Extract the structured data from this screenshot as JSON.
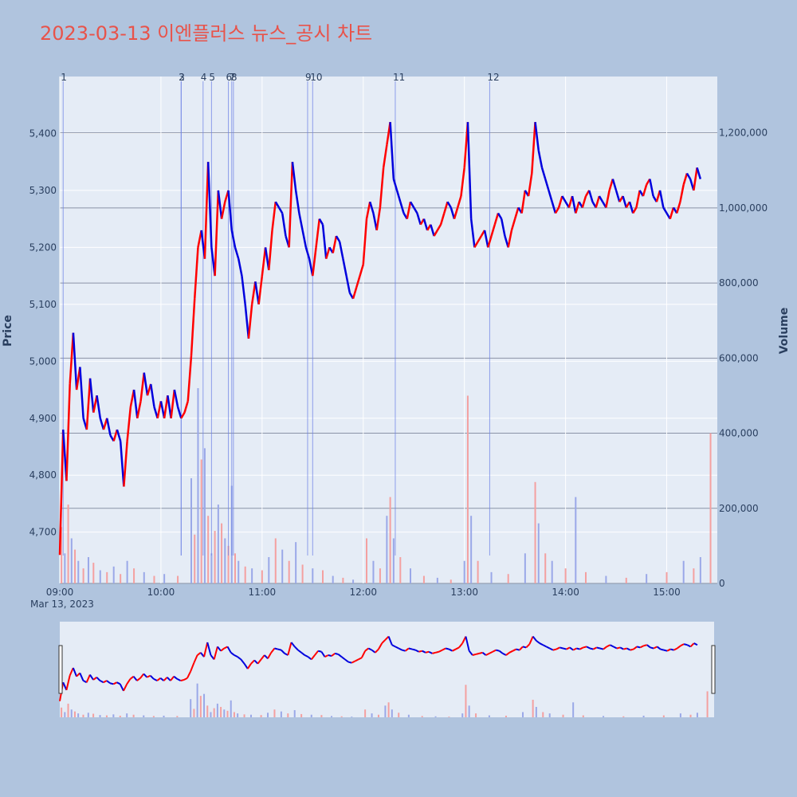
{
  "title": "2023-03-13 이엔플러스 뉴스_공시 차트",
  "colors": {
    "up": "#ff0000",
    "down": "#0000dd",
    "vol_up": "#f4a0a0",
    "vol_down": "#9aa8e8",
    "event_line": "#6f83e6",
    "title": "#e8534a"
  },
  "chart_data": {
    "type": "candlestick",
    "date_label": "Mar 13, 2023",
    "xlabel": "",
    "ylabel": "Price",
    "y2label": "Volume",
    "x_range": [
      "09:00",
      "15:30"
    ],
    "ylim": [
      4610,
      5500
    ],
    "y2lim": [
      0,
      1350000
    ],
    "x_ticks": [
      "09:00",
      "10:00",
      "11:00",
      "12:00",
      "13:00",
      "14:00",
      "15:00"
    ],
    "y_ticks": [
      4700,
      4800,
      4900,
      5000,
      5100,
      5200,
      5300,
      5400
    ],
    "y_tick_labels": [
      "4,700",
      "4,800",
      "4,900",
      "5,000",
      "5,100",
      "5,200",
      "5,300",
      "5,400"
    ],
    "y2_ticks": [
      0,
      200000,
      400000,
      600000,
      800000,
      1000000,
      1200000
    ],
    "y2_tick_labels": [
      "0",
      "200,000",
      "400,000",
      "600,000",
      "800,000",
      "1,000,000",
      "1,200,000"
    ],
    "price_path": [
      [
        "09:00",
        4660
      ],
      [
        "09:02",
        4880
      ],
      [
        "09:04",
        4790
      ],
      [
        "09:06",
        4960
      ],
      [
        "09:08",
        5050
      ],
      [
        "09:10",
        4950
      ],
      [
        "09:12",
        4990
      ],
      [
        "09:14",
        4900
      ],
      [
        "09:16",
        4880
      ],
      [
        "09:18",
        4970
      ],
      [
        "09:20",
        4910
      ],
      [
        "09:22",
        4940
      ],
      [
        "09:24",
        4900
      ],
      [
        "09:26",
        4880
      ],
      [
        "09:28",
        4900
      ],
      [
        "09:30",
        4870
      ],
      [
        "09:32",
        4860
      ],
      [
        "09:34",
        4880
      ],
      [
        "09:36",
        4860
      ],
      [
        "09:38",
        4780
      ],
      [
        "09:40",
        4860
      ],
      [
        "09:42",
        4920
      ],
      [
        "09:44",
        4950
      ],
      [
        "09:46",
        4900
      ],
      [
        "09:48",
        4930
      ],
      [
        "09:50",
        4980
      ],
      [
        "09:52",
        4940
      ],
      [
        "09:54",
        4960
      ],
      [
        "09:56",
        4920
      ],
      [
        "09:58",
        4900
      ],
      [
        "10:00",
        4930
      ],
      [
        "10:02",
        4900
      ],
      [
        "10:04",
        4940
      ],
      [
        "10:06",
        4900
      ],
      [
        "10:08",
        4950
      ],
      [
        "10:10",
        4920
      ],
      [
        "10:12",
        4900
      ],
      [
        "10:14",
        4910
      ],
      [
        "10:16",
        4930
      ],
      [
        "10:18",
        5010
      ],
      [
        "10:20",
        5110
      ],
      [
        "10:22",
        5200
      ],
      [
        "10:24",
        5230
      ],
      [
        "10:26",
        5180
      ],
      [
        "10:28",
        5350
      ],
      [
        "10:30",
        5200
      ],
      [
        "10:32",
        5150
      ],
      [
        "10:34",
        5300
      ],
      [
        "10:36",
        5250
      ],
      [
        "10:38",
        5280
      ],
      [
        "10:40",
        5300
      ],
      [
        "10:42",
        5230
      ],
      [
        "10:44",
        5200
      ],
      [
        "10:46",
        5180
      ],
      [
        "10:48",
        5150
      ],
      [
        "10:50",
        5100
      ],
      [
        "10:52",
        5040
      ],
      [
        "10:54",
        5100
      ],
      [
        "10:56",
        5140
      ],
      [
        "10:58",
        5100
      ],
      [
        "11:00",
        5150
      ],
      [
        "11:02",
        5200
      ],
      [
        "11:04",
        5160
      ],
      [
        "11:06",
        5230
      ],
      [
        "11:08",
        5280
      ],
      [
        "11:10",
        5270
      ],
      [
        "11:12",
        5260
      ],
      [
        "11:14",
        5220
      ],
      [
        "11:16",
        5200
      ],
      [
        "11:18",
        5350
      ],
      [
        "11:20",
        5300
      ],
      [
        "11:22",
        5260
      ],
      [
        "11:24",
        5230
      ],
      [
        "11:26",
        5200
      ],
      [
        "11:28",
        5180
      ],
      [
        "11:30",
        5150
      ],
      [
        "11:32",
        5200
      ],
      [
        "11:34",
        5250
      ],
      [
        "11:36",
        5240
      ],
      [
        "11:38",
        5180
      ],
      [
        "11:40",
        5200
      ],
      [
        "11:42",
        5190
      ],
      [
        "11:44",
        5220
      ],
      [
        "11:46",
        5210
      ],
      [
        "11:48",
        5180
      ],
      [
        "11:50",
        5150
      ],
      [
        "11:52",
        5120
      ],
      [
        "11:54",
        5110
      ],
      [
        "11:56",
        5130
      ],
      [
        "11:58",
        5150
      ],
      [
        "12:00",
        5170
      ],
      [
        "12:02",
        5250
      ],
      [
        "12:04",
        5280
      ],
      [
        "12:06",
        5260
      ],
      [
        "12:08",
        5230
      ],
      [
        "12:10",
        5270
      ],
      [
        "12:12",
        5340
      ],
      [
        "12:14",
        5380
      ],
      [
        "12:16",
        5420
      ],
      [
        "12:18",
        5320
      ],
      [
        "12:20",
        5300
      ],
      [
        "12:22",
        5280
      ],
      [
        "12:24",
        5260
      ],
      [
        "12:26",
        5250
      ],
      [
        "12:28",
        5280
      ],
      [
        "12:30",
        5270
      ],
      [
        "12:32",
        5260
      ],
      [
        "12:34",
        5240
      ],
      [
        "12:36",
        5250
      ],
      [
        "12:38",
        5230
      ],
      [
        "12:40",
        5240
      ],
      [
        "12:42",
        5220
      ],
      [
        "12:44",
        5230
      ],
      [
        "12:46",
        5240
      ],
      [
        "12:48",
        5260
      ],
      [
        "12:50",
        5280
      ],
      [
        "12:52",
        5270
      ],
      [
        "12:54",
        5250
      ],
      [
        "12:56",
        5270
      ],
      [
        "12:58",
        5290
      ],
      [
        "13:00",
        5340
      ],
      [
        "13:02",
        5420
      ],
      [
        "13:04",
        5250
      ],
      [
        "13:06",
        5200
      ],
      [
        "13:08",
        5210
      ],
      [
        "13:10",
        5220
      ],
      [
        "13:12",
        5230
      ],
      [
        "13:14",
        5200
      ],
      [
        "13:16",
        5220
      ],
      [
        "13:18",
        5240
      ],
      [
        "13:20",
        5260
      ],
      [
        "13:22",
        5250
      ],
      [
        "13:24",
        5220
      ],
      [
        "13:26",
        5200
      ],
      [
        "13:28",
        5230
      ],
      [
        "13:30",
        5250
      ],
      [
        "13:32",
        5270
      ],
      [
        "13:34",
        5260
      ],
      [
        "13:36",
        5300
      ],
      [
        "13:38",
        5290
      ],
      [
        "13:40",
        5330
      ],
      [
        "13:42",
        5420
      ],
      [
        "13:44",
        5370
      ],
      [
        "13:46",
        5340
      ],
      [
        "13:48",
        5320
      ],
      [
        "13:50",
        5300
      ],
      [
        "13:52",
        5280
      ],
      [
        "13:54",
        5260
      ],
      [
        "13:56",
        5270
      ],
      [
        "13:58",
        5290
      ],
      [
        "14:00",
        5280
      ],
      [
        "14:02",
        5270
      ],
      [
        "14:04",
        5290
      ],
      [
        "14:06",
        5260
      ],
      [
        "14:08",
        5280
      ],
      [
        "14:10",
        5270
      ],
      [
        "14:12",
        5290
      ],
      [
        "14:14",
        5300
      ],
      [
        "14:16",
        5280
      ],
      [
        "14:18",
        5270
      ],
      [
        "14:20",
        5290
      ],
      [
        "14:22",
        5280
      ],
      [
        "14:24",
        5270
      ],
      [
        "14:26",
        5300
      ],
      [
        "14:28",
        5320
      ],
      [
        "14:30",
        5300
      ],
      [
        "14:32",
        5280
      ],
      [
        "14:34",
        5290
      ],
      [
        "14:36",
        5270
      ],
      [
        "14:38",
        5280
      ],
      [
        "14:40",
        5260
      ],
      [
        "14:42",
        5270
      ],
      [
        "14:44",
        5300
      ],
      [
        "14:46",
        5290
      ],
      [
        "14:48",
        5310
      ],
      [
        "14:50",
        5320
      ],
      [
        "14:52",
        5290
      ],
      [
        "14:54",
        5280
      ],
      [
        "14:56",
        5300
      ],
      [
        "14:58",
        5270
      ],
      [
        "15:00",
        5260
      ],
      [
        "15:02",
        5250
      ],
      [
        "15:04",
        5270
      ],
      [
        "15:06",
        5260
      ],
      [
        "15:08",
        5280
      ],
      [
        "15:10",
        5310
      ],
      [
        "15:12",
        5330
      ],
      [
        "15:14",
        5320
      ],
      [
        "15:16",
        5300
      ],
      [
        "15:18",
        5340
      ],
      [
        "15:20",
        5320
      ]
    ],
    "volume_bars": [
      [
        "09:01",
        150000
      ],
      [
        "09:03",
        80000
      ],
      [
        "09:05",
        210000
      ],
      [
        "09:07",
        120000
      ],
      [
        "09:09",
        90000
      ],
      [
        "09:11",
        60000
      ],
      [
        "09:14",
        40000
      ],
      [
        "09:17",
        70000
      ],
      [
        "09:20",
        55000
      ],
      [
        "09:24",
        35000
      ],
      [
        "09:28",
        30000
      ],
      [
        "09:32",
        45000
      ],
      [
        "09:36",
        25000
      ],
      [
        "09:40",
        60000
      ],
      [
        "09:44",
        40000
      ],
      [
        "09:50",
        30000
      ],
      [
        "09:56",
        20000
      ],
      [
        "10:02",
        25000
      ],
      [
        "10:10",
        20000
      ],
      [
        "10:18",
        280000
      ],
      [
        "10:20",
        130000
      ],
      [
        "10:22",
        520000
      ],
      [
        "10:24",
        330000
      ],
      [
        "10:26",
        360000
      ],
      [
        "10:28",
        180000
      ],
      [
        "10:30",
        80000
      ],
      [
        "10:32",
        140000
      ],
      [
        "10:34",
        210000
      ],
      [
        "10:36",
        160000
      ],
      [
        "10:38",
        120000
      ],
      [
        "10:40",
        100000
      ],
      [
        "10:42",
        260000
      ],
      [
        "10:44",
        80000
      ],
      [
        "10:46",
        60000
      ],
      [
        "10:50",
        45000
      ],
      [
        "10:54",
        40000
      ],
      [
        "11:00",
        35000
      ],
      [
        "11:04",
        70000
      ],
      [
        "11:08",
        120000
      ],
      [
        "11:12",
        90000
      ],
      [
        "11:16",
        60000
      ],
      [
        "11:20",
        110000
      ],
      [
        "11:24",
        50000
      ],
      [
        "11:30",
        40000
      ],
      [
        "11:36",
        35000
      ],
      [
        "11:42",
        20000
      ],
      [
        "11:48",
        15000
      ],
      [
        "11:54",
        10000
      ],
      [
        "12:02",
        120000
      ],
      [
        "12:06",
        60000
      ],
      [
        "12:10",
        40000
      ],
      [
        "12:14",
        180000
      ],
      [
        "12:16",
        230000
      ],
      [
        "12:18",
        120000
      ],
      [
        "12:22",
        70000
      ],
      [
        "12:28",
        40000
      ],
      [
        "12:36",
        20000
      ],
      [
        "12:44",
        15000
      ],
      [
        "12:52",
        10000
      ],
      [
        "13:00",
        60000
      ],
      [
        "13:02",
        500000
      ],
      [
        "13:04",
        180000
      ],
      [
        "13:08",
        60000
      ],
      [
        "13:16",
        30000
      ],
      [
        "13:26",
        25000
      ],
      [
        "13:36",
        80000
      ],
      [
        "13:42",
        270000
      ],
      [
        "13:44",
        160000
      ],
      [
        "13:48",
        80000
      ],
      [
        "13:52",
        60000
      ],
      [
        "14:00",
        40000
      ],
      [
        "14:06",
        230000
      ],
      [
        "14:12",
        30000
      ],
      [
        "14:24",
        20000
      ],
      [
        "14:36",
        15000
      ],
      [
        "14:48",
        25000
      ],
      [
        "15:00",
        30000
      ],
      [
        "15:10",
        60000
      ],
      [
        "15:16",
        40000
      ],
      [
        "15:20",
        70000
      ],
      [
        "15:26",
        400000
      ]
    ],
    "events": [
      {
        "label": "1",
        "time": "09:02"
      },
      {
        "label": "2",
        "time": "10:12"
      },
      {
        "label": "3",
        "time": "10:12"
      },
      {
        "label": "4",
        "time": "10:25"
      },
      {
        "label": "5",
        "time": "10:30"
      },
      {
        "label": "6",
        "time": "10:40"
      },
      {
        "label": "7",
        "time": "10:42"
      },
      {
        "label": "8",
        "time": "10:43"
      },
      {
        "label": "9",
        "time": "11:27"
      },
      {
        "label": "10",
        "time": "11:30"
      },
      {
        "label": "11",
        "time": "12:19"
      },
      {
        "label": "12",
        "time": "13:15"
      }
    ]
  }
}
